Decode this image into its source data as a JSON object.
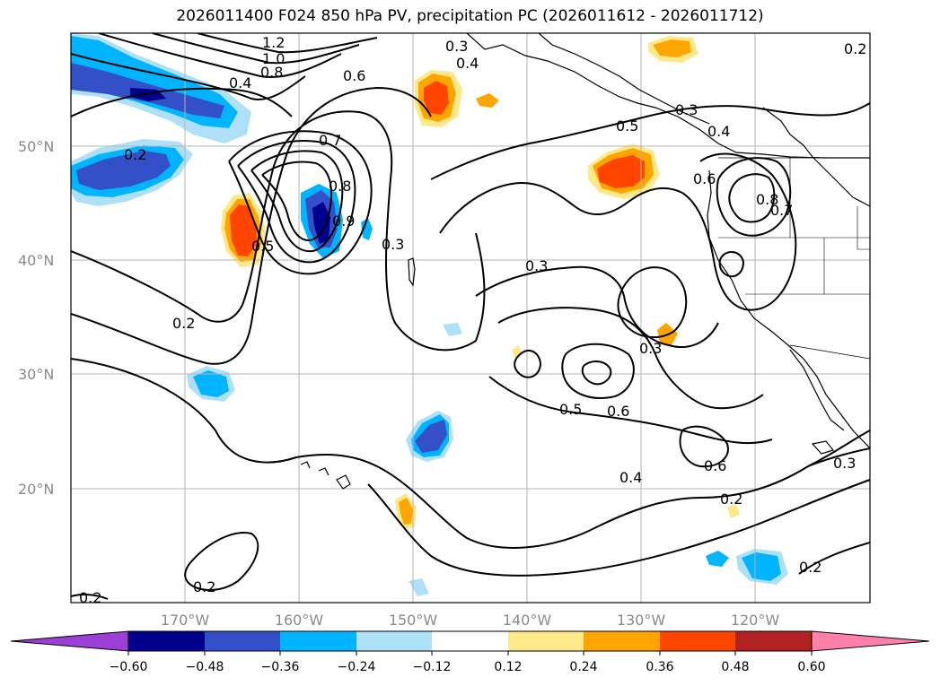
{
  "title": "2026011400 F024 850 hPa PV, precipitation PC (2026011612 - 2026011712)",
  "lat_labels": [
    "50°N",
    "40°N",
    "30°N",
    "20°N"
  ],
  "lon_labels": [
    "170°W",
    "160°W",
    "150°W",
    "140°W",
    "130°W",
    "120°W"
  ],
  "contour_labels": [
    "1.2",
    "1.0",
    "0.8",
    "0.4",
    "0.6",
    "0.3",
    "0.4",
    "0.2",
    "0.7",
    "0.8",
    "0.9",
    "0.5",
    "0.3",
    "0.3",
    "0.2",
    "0.5",
    "0.3",
    "0.4",
    "0.6",
    "0.8",
    "0.7",
    "0.3",
    "0.5",
    "0.6",
    "0.4",
    "0.6",
    "0.2",
    "0.3",
    "0.2",
    "0.2",
    "0.2",
    "0.2"
  ],
  "colorbar": {
    "ticks": [
      "−0.60",
      "−0.48",
      "−0.36",
      "−0.24",
      "−0.12",
      "0.12",
      "0.24",
      "0.36",
      "0.48",
      "0.60"
    ],
    "colors": [
      "#9c3fd6",
      "#00008c",
      "#3450c8",
      "#00b4ff",
      "#aee0f8",
      "#ffffff",
      "#fde88a",
      "#ffa500",
      "#ff4500",
      "#b22222",
      "#ff80a8"
    ]
  }
}
